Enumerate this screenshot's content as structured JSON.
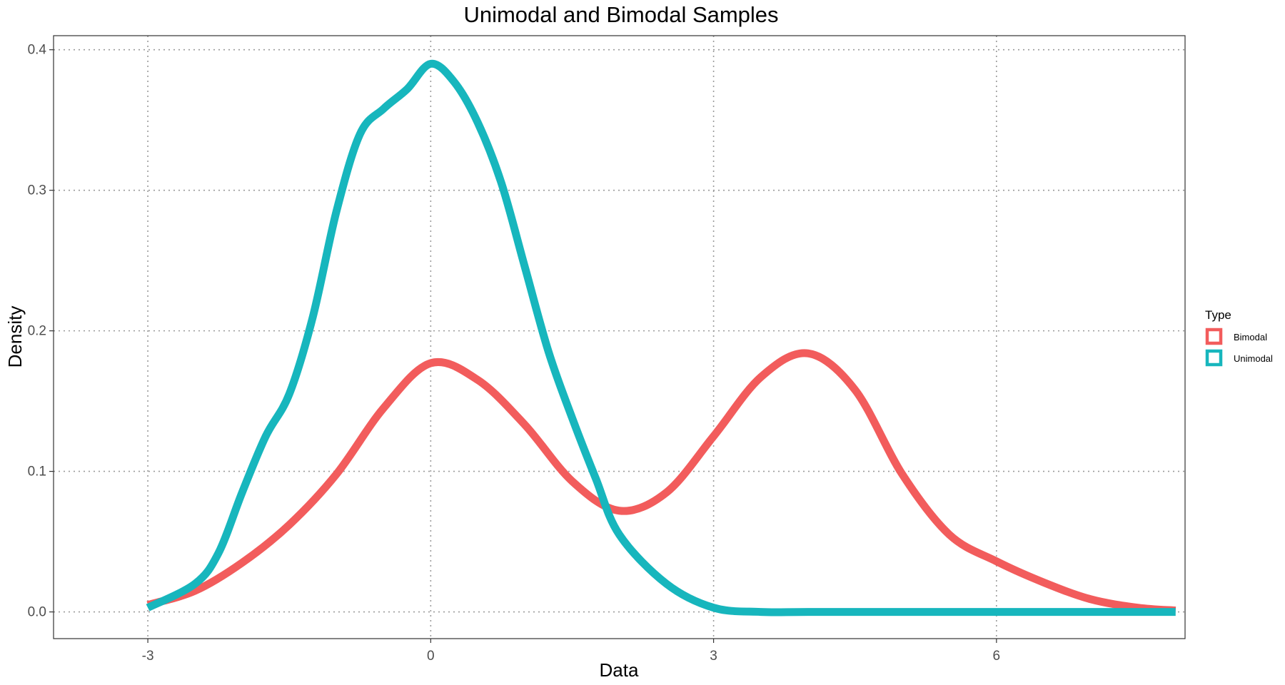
{
  "chart_data": {
    "type": "line",
    "title": "Unimodal and Bimodal Samples",
    "xlabel": "Data",
    "ylabel": "Density",
    "xlim": [
      -4.0,
      8.0
    ],
    "ylim": [
      -0.019,
      0.41
    ],
    "x_ticks": [
      {
        "value": -3,
        "label": "-3"
      },
      {
        "value": 0,
        "label": "0"
      },
      {
        "value": 3,
        "label": "3"
      },
      {
        "value": 6,
        "label": "6"
      }
    ],
    "y_ticks": [
      {
        "value": 0.0,
        "label": "0.0"
      },
      {
        "value": 0.1,
        "label": "0.1"
      },
      {
        "value": 0.2,
        "label": "0.2"
      },
      {
        "value": 0.3,
        "label": "0.3"
      },
      {
        "value": 0.4,
        "label": "0.4"
      }
    ],
    "grid": true,
    "legend": {
      "title": "Type",
      "placement": "right"
    },
    "series": [
      {
        "name": "Bimodal",
        "color": "#F25C5C",
        "x": [
          -3.0,
          -2.5,
          -2.0,
          -1.5,
          -1.0,
          -0.5,
          0.0,
          0.5,
          1.0,
          1.5,
          2.0,
          2.5,
          3.0,
          3.5,
          4.0,
          4.5,
          5.0,
          5.5,
          6.0,
          6.5,
          7.0,
          7.5,
          7.9
        ],
        "y": [
          0.005,
          0.015,
          0.035,
          0.062,
          0.098,
          0.145,
          0.177,
          0.165,
          0.133,
          0.093,
          0.072,
          0.085,
          0.125,
          0.167,
          0.184,
          0.158,
          0.098,
          0.055,
          0.036,
          0.021,
          0.009,
          0.003,
          0.001
        ]
      },
      {
        "name": "Unimodal",
        "color": "#17B6BD",
        "x": [
          -3.0,
          -2.5,
          -2.25,
          -2.0,
          -1.75,
          -1.5,
          -1.25,
          -1.0,
          -0.75,
          -0.5,
          -0.25,
          0.0,
          0.25,
          0.5,
          0.75,
          1.0,
          1.25,
          1.5,
          1.75,
          2.0,
          2.5,
          3.0,
          3.5,
          4.0,
          5.0,
          6.0,
          7.0,
          7.9
        ],
        "y": [
          0.003,
          0.02,
          0.042,
          0.085,
          0.125,
          0.155,
          0.21,
          0.285,
          0.34,
          0.358,
          0.372,
          0.39,
          0.377,
          0.348,
          0.305,
          0.245,
          0.185,
          0.138,
          0.095,
          0.055,
          0.02,
          0.003,
          0.0,
          0.0,
          0.0,
          0.0,
          0.0,
          0.0
        ]
      }
    ]
  }
}
